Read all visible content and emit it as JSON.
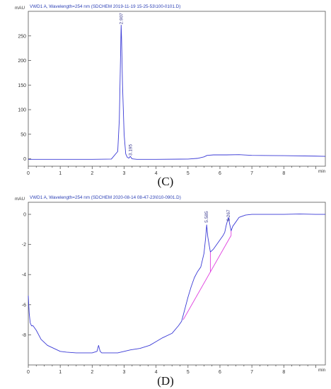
{
  "chart_data": [
    {
      "type": "line",
      "panel_label": "(C)",
      "header": "VWD1 A, Wavelength=254 nm (SDCHEM 2019-11-19 15-25-53\\100-0101.D)",
      "ylabel": "mAU",
      "xlabel_unit": "min",
      "xlim": [
        0,
        9.3
      ],
      "ylim": [
        -15,
        300
      ],
      "x_ticks": [
        0,
        1,
        2,
        3,
        4,
        5,
        6,
        7,
        8
      ],
      "y_ticks": [
        0,
        50,
        100,
        150,
        200,
        250
      ],
      "peak_labels": [
        {
          "x": 2.907,
          "y": 272,
          "text": "2.907"
        },
        {
          "x": 3.195,
          "y": 5,
          "text": "3.195"
        }
      ],
      "series": [
        {
          "x": [
            0,
            1,
            2,
            2.6,
            2.8,
            2.85,
            2.88,
            2.9,
            2.907,
            2.92,
            2.95,
            3.0,
            3.05,
            3.1,
            3.15,
            3.195,
            3.25,
            3.4,
            4,
            5,
            5.3,
            5.5,
            5.6,
            5.8,
            6.2,
            6.6,
            6.8,
            7,
            8,
            9,
            9.3
          ],
          "y": [
            -1,
            -1,
            -1,
            -0.5,
            15,
            80,
            180,
            250,
            272,
            245,
            150,
            50,
            10,
            3,
            1.5,
            5,
            0,
            -1,
            -1,
            -0.5,
            1,
            4,
            7,
            8,
            8,
            8.5,
            7.8,
            7,
            6.5,
            5.5,
            5
          ]
        }
      ]
    },
    {
      "type": "line",
      "panel_label": "(D)",
      "header": "VWD1 A, Wavelength=254 nm (SDCHEM 2020-08-14 08-47-23\\010-0901.D)",
      "ylabel": "mAU",
      "xlabel_unit": "min",
      "xlim": [
        0,
        9.3
      ],
      "ylim": [
        -10,
        0.8
      ],
      "x_ticks": [
        0,
        1,
        2,
        3,
        4,
        5,
        6,
        7,
        8
      ],
      "y_ticks": [
        0,
        -2,
        -4,
        -6,
        -8
      ],
      "peak_labels": [
        {
          "x": 5.585,
          "y": -0.6,
          "text": "5.585"
        },
        {
          "x": 6.267,
          "y": -0.5,
          "text": "6.267"
        }
      ],
      "series": [
        {
          "x": [
            0,
            0.03,
            0.06,
            0.1,
            0.15,
            0.25,
            0.4,
            0.6,
            0.8,
            1.0,
            1.2,
            1.5,
            1.8,
            2.0,
            2.15,
            2.2,
            2.25,
            2.3,
            2.5,
            2.8,
            3.0,
            3.2,
            3.5,
            3.8,
            4.0,
            4.2,
            4.5,
            4.7,
            4.8,
            4.9,
            5.0,
            5.1,
            5.2,
            5.3,
            5.4,
            5.5,
            5.55,
            5.585,
            5.62,
            5.7,
            5.8,
            5.9,
            6.0,
            6.1,
            6.15,
            6.2,
            6.267,
            6.3,
            6.35,
            6.4,
            6.5,
            6.6,
            6.8,
            7.0,
            7.5,
            8.0,
            8.5,
            9.0,
            9.3
          ],
          "y": [
            -5.4,
            -6.6,
            -7.2,
            -7.4,
            -7.4,
            -7.7,
            -8.3,
            -8.7,
            -8.9,
            -9.1,
            -9.15,
            -9.2,
            -9.2,
            -9.2,
            -9.1,
            -8.7,
            -9.1,
            -9.2,
            -9.2,
            -9.2,
            -9.1,
            -9.0,
            -8.9,
            -8.7,
            -8.45,
            -8.2,
            -7.9,
            -7.4,
            -7.1,
            -6.3,
            -5.5,
            -4.8,
            -4.2,
            -3.8,
            -3.5,
            -2.6,
            -1.6,
            -0.7,
            -1.5,
            -2.5,
            -2.3,
            -2.0,
            -1.7,
            -1.4,
            -1.2,
            -0.7,
            -0.2,
            -0.6,
            -1.1,
            -0.8,
            -0.5,
            -0.2,
            -0.05,
            0,
            0,
            0,
            0.02,
            0,
            0
          ]
        },
        {
          "x": [
            4.85,
            6.35
          ],
          "y": [
            -7.0,
            -1.4
          ]
        }
      ],
      "drop_lines": [
        {
          "x": 5.7,
          "y_top": -2.5,
          "y_bottom": -3.85
        },
        {
          "x": 6.35,
          "y_top": -1.1,
          "y_bottom": -1.4
        }
      ]
    }
  ]
}
